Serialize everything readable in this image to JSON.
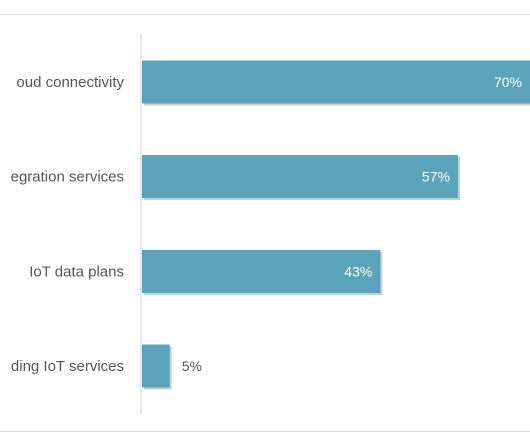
{
  "chart_data": {
    "type": "bar",
    "orientation": "horizontal",
    "categories": [
      "oud connectivity",
      "egration services",
      "IoT data plans",
      "ding IoT services"
    ],
    "values": [
      70,
      57,
      43,
      5
    ],
    "value_labels": [
      "70%",
      "57%",
      "43%",
      "5%"
    ],
    "unit": "%",
    "title": "",
    "xlabel": "",
    "ylabel": "",
    "grid": false,
    "bar_color": "#5ba3bb",
    "bar_shadow_color": "#3f7f93"
  }
}
